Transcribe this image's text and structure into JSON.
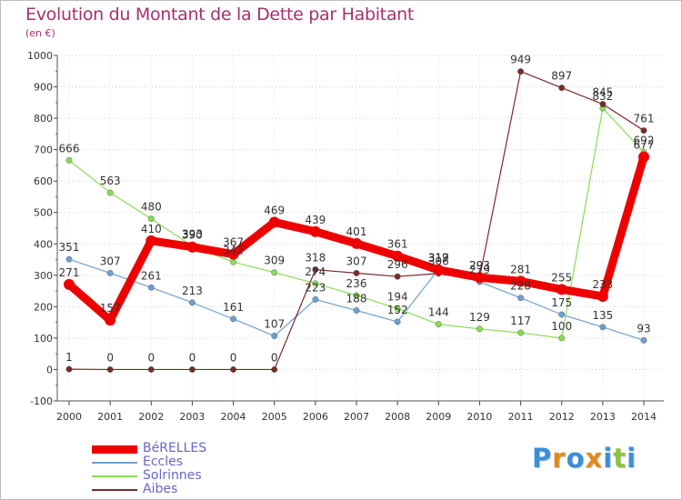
{
  "title": "Evolution du Montant de la Dette par Habitant",
  "subtitle": "(en €)",
  "brand": {
    "letters": [
      "P",
      "r",
      "o",
      "x",
      "i",
      "t",
      "i"
    ],
    "colors": [
      "#3a8fd8",
      "#e08a1e",
      "#3a8fd8",
      "#e08a1e",
      "#3a8fd8",
      "#8bc43f",
      "#3a8fd8"
    ]
  },
  "chart_data": {
    "type": "line",
    "title": "Evolution du Montant de la Dette par Habitant",
    "ylabel": "(en €)",
    "xlabel": "",
    "ylim": [
      -100,
      1000
    ],
    "yticks": [
      -100,
      0,
      100,
      200,
      300,
      400,
      500,
      600,
      700,
      800,
      900,
      1000
    ],
    "grid": "horizontal dotted",
    "legend_position": "bottom-left",
    "x": [
      "2000",
      "2001",
      "2002",
      "2003",
      "2004",
      "2005",
      "2006",
      "2007",
      "2008",
      "2009",
      "2010",
      "2011",
      "2012",
      "2013",
      "2014"
    ],
    "series": [
      {
        "name": "BéRELLES",
        "color": "#ee0000",
        "width": 9,
        "values": [
          271,
          157,
          410,
          390,
          367,
          469,
          439,
          401,
          361,
          317,
          293,
          281,
          255,
          233,
          677
        ],
        "labels": [
          "271",
          "157",
          "410",
          "390",
          "367",
          "469",
          "439",
          "401",
          "361",
          "317",
          "293",
          "281",
          "255",
          "233",
          "677"
        ]
      },
      {
        "name": "Eccles",
        "color": "#6fa0d0",
        "width": 1.2,
        "values": [
          351,
          307,
          261,
          213,
          161,
          107,
          223,
          188,
          152,
          319,
          279,
          228,
          175,
          135,
          93
        ],
        "labels": [
          "351",
          "307",
          "261",
          "213",
          "161",
          "107",
          "223",
          "188",
          "152",
          "319",
          "279",
          "228",
          "175",
          "135",
          "93"
        ]
      },
      {
        "name": "Solrinnes",
        "color": "#88dd55",
        "width": 1.2,
        "values": [
          666,
          563,
          480,
          393,
          342,
          309,
          274,
          236,
          194,
          144,
          129,
          117,
          100,
          832,
          692
        ],
        "labels": [
          "666",
          "563",
          "480",
          "393",
          "342",
          "309",
          "274",
          "236",
          "194",
          "144",
          "129",
          "117",
          "100",
          "832",
          "692"
        ]
      },
      {
        "name": "Aibes",
        "color": "#7a2a2a",
        "width": 1.2,
        "values": [
          1,
          0,
          0,
          0,
          0,
          0,
          318,
          307,
          296,
          306,
          293,
          949,
          897,
          845,
          761
        ],
        "labels": [
          "1",
          "0",
          "0",
          "0",
          "0",
          "0",
          "318",
          "307",
          "296",
          "306",
          "293",
          "949",
          "897",
          "845",
          "761"
        ]
      }
    ]
  }
}
